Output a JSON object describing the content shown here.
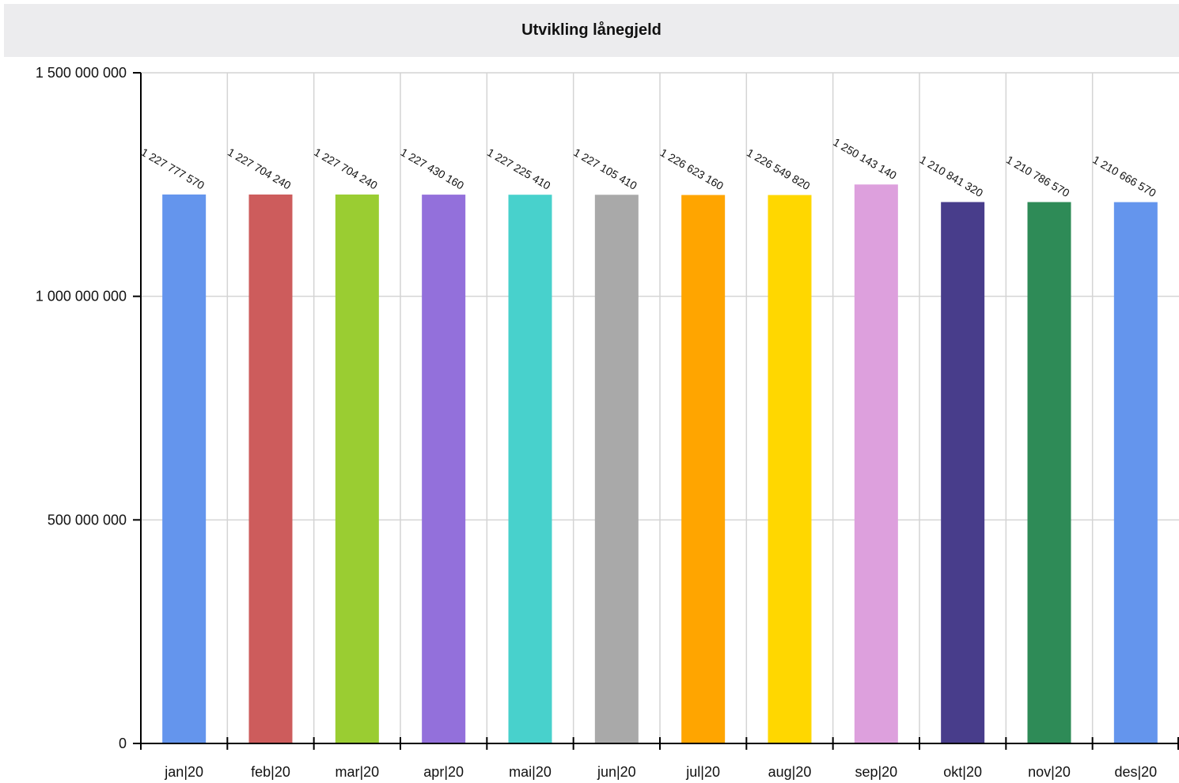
{
  "chart_data": {
    "type": "bar",
    "title": "Utvikling lånegjeld",
    "xlabel": "",
    "ylabel": "",
    "ylim": [
      0,
      1500000000
    ],
    "y_ticks": [
      0,
      500000000,
      1000000000,
      1500000000
    ],
    "y_tick_labels": [
      "0",
      "500 000 000",
      "1 000 000 000",
      "1 500 000 000"
    ],
    "categories": [
      "jan|20",
      "feb|20",
      "mar|20",
      "apr|20",
      "mai|20",
      "jun|20",
      "jul|20",
      "aug|20",
      "sep|20",
      "okt|20",
      "nov|20",
      "des|20"
    ],
    "values": [
      1227777570,
      1227704240,
      1227704240,
      1227430160,
      1227225410,
      1227105410,
      1226623160,
      1226549820,
      1250143140,
      1210841320,
      1210786570,
      1210666570
    ],
    "data_labels": [
      "1 227 777 570",
      "1 227 704 240",
      "1 227 704 240",
      "1 227 430 160",
      "1 227 225 410",
      "1 227 105 410",
      "1 226 623 160",
      "1 226 549 820",
      "1 250 143 140",
      "1 210 841 320",
      "1 210 786 570",
      "1 210 666 570"
    ],
    "colors": [
      "#6495ed",
      "#cd5c5c",
      "#9acd32",
      "#9370db",
      "#48d1cc",
      "#a9a9a9",
      "#ffa500",
      "#ffd700",
      "#dda0dd",
      "#483d8b",
      "#2e8b57",
      "#6495ed"
    ],
    "grid": true,
    "legend": "none"
  }
}
